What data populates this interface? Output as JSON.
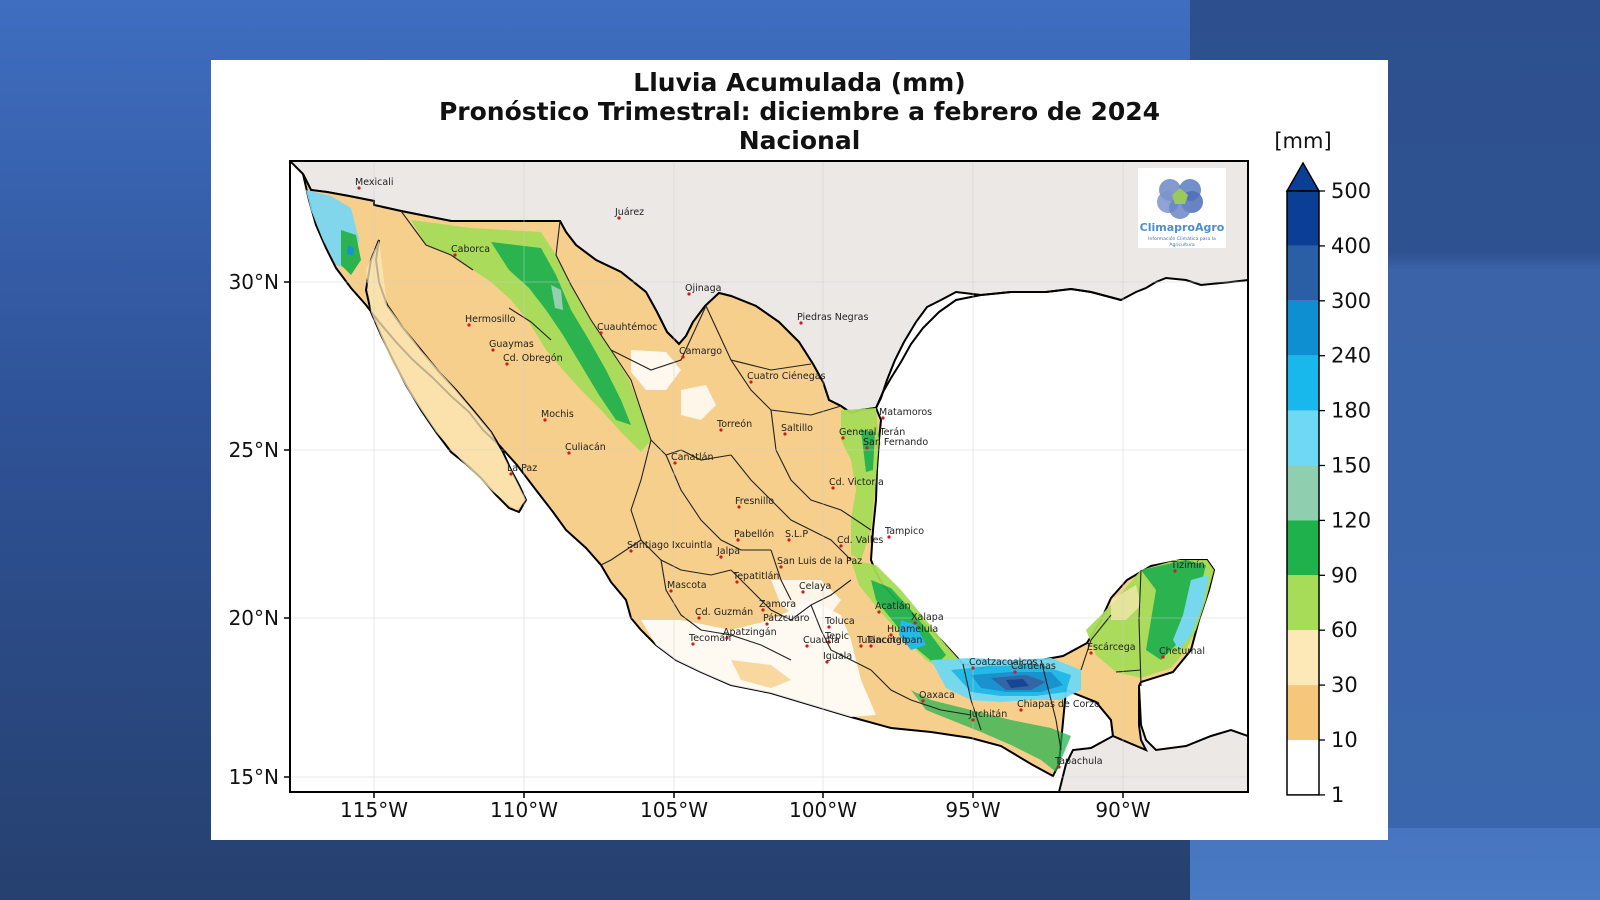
{
  "title": {
    "line1": "Lluvia Acumulada (mm)",
    "line2": "Pronóstico Trimestral: diciembre a febrero de 2024",
    "line3": "Nacional"
  },
  "axes": {
    "lon_ticks": [
      "115°W",
      "110°W",
      "105°W",
      "100°W",
      "95°W",
      "90°W"
    ],
    "lat_ticks": [
      "30°N",
      "25°N",
      "20°N",
      "15°N"
    ]
  },
  "colorbar": {
    "unit": "[mm]",
    "levels": [
      "500",
      "400",
      "300",
      "240",
      "180",
      "150",
      "120",
      "90",
      "60",
      "30",
      "10",
      "1"
    ],
    "colors": [
      "#0b3f96",
      "#2a5fa6",
      "#0e8fd2",
      "#19b8ec",
      "#6fd8f3",
      "#8fcfb0",
      "#1fb24c",
      "#a6dc58",
      "#fde9b8",
      "#f6c77a",
      "#ffffff"
    ]
  },
  "logo": {
    "name": "ClimaproAgro",
    "tagline1": "Información Climática para la",
    "tagline2": "Agricultura"
  },
  "cities": [
    "Mexicali",
    "Juárez",
    "Caborca",
    "Ojinaga",
    "Hermosillo",
    "Cuauhtémoc",
    "Piedras Negras",
    "Guaymas",
    "Cd. Obregón",
    "Camargo",
    "Cuatro Ciénegas",
    "Mochis",
    "Torreón",
    "Saltillo",
    "Matamoros",
    "General Terán",
    "San Fernando",
    "Culiacán",
    "Canatlán",
    "La Paz",
    "Cd. Victoria",
    "Fresnillo",
    "Pabellón",
    "S.L.P",
    "Cd. Valles",
    "Tampico",
    "Santiago Ixcuintla",
    "Jalpa",
    "San Luis de la Paz",
    "Tepatitlán",
    "Mascota",
    "Celaya",
    "Tizimín",
    "Zamora",
    "Cd. Guzmán",
    "Pátzcuaro",
    "Acatlán",
    "Xalapa",
    "Toluca",
    "Apatzingán",
    "Tecomán",
    "Tulancingo",
    "Tepic",
    "Iguala",
    "Tlacotalpan",
    "Escárcega",
    "Chetumal",
    "Coatzacoalcos",
    "Cárdenas",
    "Oaxaca",
    "Chiapas de Corzo",
    "Juchitán",
    "Tapachula",
    "Huamelula",
    "Cuautla"
  ],
  "colors": {
    "land_other": "#ebe8e6",
    "border": "#000000",
    "city_dot": "#d11b1b"
  }
}
